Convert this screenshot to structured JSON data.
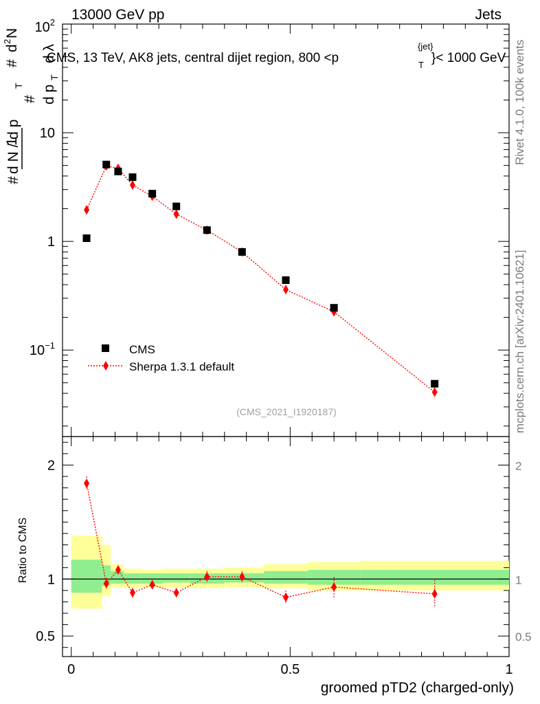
{
  "header": {
    "energy_label": "13000 GeV pp",
    "category_label": "Jets",
    "title": "CMS, 13 TeV, AK8 jets, central dijet region, 800 <p",
    "title_sup": "{jet}",
    "title_sub": "T",
    "title_end": "}< 1000 GeV"
  },
  "side_labels": {
    "rivet": "Rivet 4.1.0,  100k events",
    "mcplots": "mcplots.cern.ch [arXiv:2401.10621]"
  },
  "chart_data": {
    "type": "scatter",
    "title": "CMS, 13 TeV, AK8 jets, central dijet region, 800 < pT^jet < 1000 GeV",
    "analysis_id": "(CMS_2021_I1920187)",
    "xlabel": "groomed pTD2 (charged-only)",
    "ylabel": "1/(dN/dpT) d²N/(dpT dλ)",
    "ylabel_parts": {
      "hash1": "#",
      "one": "1",
      "dn": "d N / d p",
      "t": "T",
      "hash2": "#",
      "d2n": "d",
      "two": "2",
      "n": "N",
      "dp": "d p",
      "t2": "T",
      "dl": "d λ",
      "hash3": "#"
    },
    "ratio_ylabel": "Ratio to CMS",
    "xlim": [
      -0.02,
      1.0
    ],
    "ylim": [
      0.016,
      100
    ],
    "ratio_ylim": [
      0.32,
      2.25
    ],
    "x_ticks": [
      "0",
      "0.5",
      "1"
    ],
    "y_ticks": [
      "10",
      "1"
    ],
    "y_tick_top": {
      "base": "10",
      "exp": "2"
    },
    "y_tick_low": {
      "base": "10",
      "exp": "−1"
    },
    "ratio_y_ticks": [
      "2",
      "1",
      "0.5"
    ],
    "legend": [
      {
        "name": "CMS",
        "marker": "square"
      },
      {
        "name": "Sherpa 1.3.1 default",
        "marker": "diamond"
      }
    ],
    "series": [
      {
        "name": "CMS",
        "color": "#000000",
        "x": [
          0.035,
          0.08,
          0.107,
          0.14,
          0.185,
          0.24,
          0.31,
          0.39,
          0.49,
          0.6,
          0.83
        ],
        "values": [
          1.07,
          5.1,
          4.4,
          3.9,
          2.75,
          2.1,
          1.27,
          0.8,
          0.44,
          0.245,
          0.049
        ],
        "bins": [
          [
            0.0,
            0.07
          ],
          [
            0.07,
            0.09
          ],
          [
            0.09,
            0.12
          ],
          [
            0.12,
            0.16
          ],
          [
            0.16,
            0.21
          ],
          [
            0.21,
            0.27
          ],
          [
            0.27,
            0.35
          ],
          [
            0.35,
            0.44
          ],
          [
            0.44,
            0.54
          ],
          [
            0.54,
            0.66
          ],
          [
            0.66,
            1.0
          ]
        ],
        "stat_band": [
          [
            0.88,
            1.17
          ],
          [
            0.94,
            1.12
          ],
          [
            0.96,
            1.07
          ],
          [
            0.96,
            1.05
          ],
          [
            0.96,
            1.05
          ],
          [
            0.97,
            1.05
          ],
          [
            0.96,
            1.05
          ],
          [
            0.97,
            1.05
          ],
          [
            0.96,
            1.07
          ],
          [
            0.95,
            1.08
          ],
          [
            0.95,
            1.08
          ]
        ],
        "total_band": [
          [
            0.74,
            1.38
          ],
          [
            0.85,
            1.3
          ],
          [
            0.93,
            1.13
          ],
          [
            0.92,
            1.09
          ],
          [
            0.93,
            1.08
          ],
          [
            0.93,
            1.09
          ],
          [
            0.92,
            1.09
          ],
          [
            0.93,
            1.1
          ],
          [
            0.92,
            1.13
          ],
          [
            0.9,
            1.15
          ],
          [
            0.9,
            1.16
          ]
        ]
      },
      {
        "name": "Sherpa 1.3.1 default",
        "color": "#ff0000",
        "x": [
          0.035,
          0.08,
          0.107,
          0.14,
          0.185,
          0.24,
          0.31,
          0.39,
          0.49,
          0.6,
          0.83
        ],
        "values": [
          1.95,
          4.95,
          4.7,
          3.3,
          2.6,
          1.78,
          1.27,
          0.8,
          0.36,
          0.225,
          0.041
        ],
        "errors": [
          0.1,
          0.15,
          0.12,
          0.1,
          0.08,
          0.06,
          0.04,
          0.03,
          0.025,
          0.02,
          0.005
        ],
        "ratio": [
          1.84,
          0.96,
          1.08,
          0.88,
          0.95,
          0.88,
          1.02,
          1.02,
          0.84,
          0.93,
          0.87
        ],
        "ratio_errors": [
          0.06,
          0.05,
          0.04,
          0.04,
          0.04,
          0.04,
          0.05,
          0.05,
          0.06,
          0.09,
          0.12
        ]
      }
    ]
  }
}
